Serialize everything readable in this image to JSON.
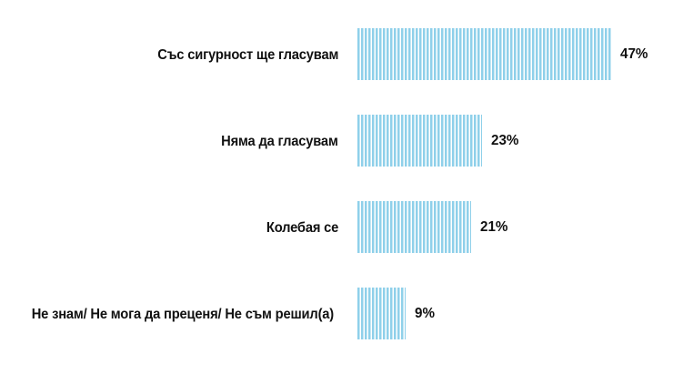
{
  "chart_data": {
    "type": "bar",
    "orientation": "horizontal",
    "title": "",
    "xlabel": "",
    "ylabel": "",
    "categories": [
      "Със сигурност ще гласувам",
      "Няма да гласувам",
      "Колебая се",
      "Не знам/ Не мога да преценя/ Не съм решил(а)"
    ],
    "values": [
      47,
      23,
      21,
      9
    ],
    "value_labels": [
      "47%",
      "23%",
      "21%",
      "9%"
    ],
    "unit": "%",
    "xlim": [
      0,
      100
    ],
    "grid": false,
    "legend": null,
    "bar_color": "#8fd0ea",
    "bar_pattern": "vertical-stripes"
  },
  "rows": [
    {
      "label": "Със сигурност ще гласувам",
      "value": 47,
      "value_label": "47%"
    },
    {
      "label": "Няма да гласувам",
      "value": 23,
      "value_label": "23%"
    },
    {
      "label": "Колебая се",
      "value": 21,
      "value_label": "21%"
    },
    {
      "label": "Не знам/ Не мога да преценя/ Не съм решил(а)",
      "value": 9,
      "value_label": "9%"
    }
  ],
  "colors": {
    "bar": "#8fd0ea",
    "text": "#111111",
    "background": "#ffffff"
  }
}
